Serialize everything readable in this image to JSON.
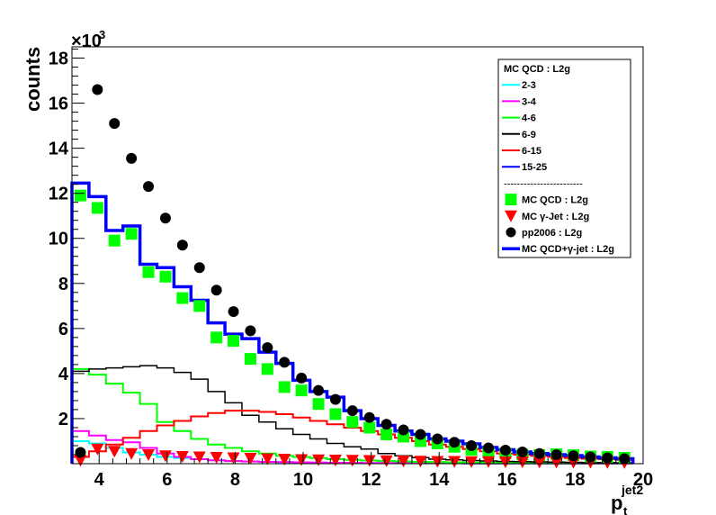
{
  "chart_data": {
    "type": "histogram",
    "ylabel": "counts",
    "xlabel_main": "p",
    "xlabel_sub": "t",
    "xlabel_sup": "jet2",
    "y_multiplier": "×10",
    "y_multiplier_exp": "3",
    "xlim": [
      3.2,
      20
    ],
    "ylim": [
      0,
      18.5
    ],
    "x_ticks": [
      4,
      6,
      8,
      10,
      12,
      14,
      16,
      18,
      20
    ],
    "y_ticks": [
      2,
      4,
      6,
      8,
      10,
      12,
      14,
      16,
      18
    ],
    "bin_edges": [
      3.2,
      3.7,
      4.2,
      4.7,
      5.2,
      5.7,
      6.2,
      6.7,
      7.2,
      7.7,
      8.2,
      8.7,
      9.2,
      9.7,
      10.2,
      10.7,
      11.2,
      11.7,
      12.2,
      12.7,
      13.2,
      13.7,
      14.2,
      14.7,
      15.2,
      15.7,
      16.2,
      16.7,
      17.2,
      17.7,
      18.2,
      18.7,
      19.2,
      19.7
    ],
    "legend": {
      "title": "MC QCD : L2g",
      "separator": "------------------------",
      "entries": [
        {
          "label": "2-3",
          "color": "#00ffff",
          "kind": "line"
        },
        {
          "label": "3-4",
          "color": "#ff00ff",
          "kind": "line"
        },
        {
          "label": "4-6",
          "color": "#00ff00",
          "kind": "line"
        },
        {
          "label": "6-9",
          "color": "#000000",
          "kind": "line"
        },
        {
          "label": "6-15",
          "color": "#ff0000",
          "kind": "line"
        },
        {
          "label": "15-25",
          "color": "#0000ff",
          "kind": "line"
        },
        {
          "label": "MC QCD : L2g",
          "color": "#00ff00",
          "kind": "square"
        },
        {
          "label": "MC γ-Jet : L2g",
          "color": "#ff0000",
          "kind": "triangle"
        },
        {
          "label": "pp2006 : L2g",
          "color": "#000000",
          "kind": "circle"
        },
        {
          "label": "MC QCD+γ-jet : L2g",
          "color": "#0000ff",
          "kind": "thickline"
        }
      ]
    },
    "series": [
      {
        "name": "2-3",
        "color": "#00ffff",
        "style": "hist",
        "width": 2,
        "values": [
          1.0,
          0.9,
          0.7,
          0.5,
          0.4,
          0.3,
          0.25,
          0.2,
          0.15,
          0.12,
          0.1,
          0.08,
          0.07,
          0.06,
          0.05,
          0.04,
          0.04,
          0.03,
          0.03,
          0.02,
          0.02,
          0.02,
          0.02,
          0.01,
          0.01,
          0.01,
          0.01,
          0.01,
          0.01,
          0.01,
          0.01,
          0.01,
          0.01
        ]
      },
      {
        "name": "3-4",
        "color": "#ff00ff",
        "style": "hist",
        "width": 2,
        "values": [
          1.45,
          1.25,
          1.05,
          0.95,
          0.7,
          0.45,
          0.3,
          0.2,
          0.15,
          0.12,
          0.1,
          0.08,
          0.07,
          0.06,
          0.05,
          0.04,
          0.04,
          0.03,
          0.03,
          0.02,
          0.02,
          0.02,
          0.02,
          0.01,
          0.01,
          0.01,
          0.01,
          0.01,
          0.01,
          0.01,
          0.01,
          0.01,
          0.01
        ]
      },
      {
        "name": "4-6",
        "color": "#00ff00",
        "style": "hist",
        "width": 2,
        "values": [
          4.2,
          3.95,
          3.55,
          3.15,
          2.65,
          1.85,
          1.45,
          1.1,
          0.85,
          0.7,
          0.55,
          0.45,
          0.35,
          0.3,
          0.25,
          0.2,
          0.17,
          0.14,
          0.12,
          0.1,
          0.08,
          0.07,
          0.06,
          0.05,
          0.05,
          0.04,
          0.04,
          0.03,
          0.03,
          0.03,
          0.03,
          0.02,
          0.02
        ]
      },
      {
        "name": "6-9",
        "color": "#000000",
        "style": "hist",
        "width": 1.5,
        "values": [
          4.1,
          4.2,
          4.25,
          4.3,
          4.35,
          4.25,
          4.05,
          3.75,
          3.2,
          2.7,
          2.15,
          1.85,
          1.55,
          1.3,
          1.1,
          0.9,
          0.75,
          0.65,
          0.45,
          0.35,
          0.27,
          0.2,
          0.17,
          0.14,
          0.12,
          0.1,
          0.09,
          0.08,
          0.07,
          0.06,
          0.05,
          0.05,
          0.04
        ]
      },
      {
        "name": "6-15",
        "color": "#ff0000",
        "style": "hist",
        "width": 2,
        "values": [
          0.3,
          0.55,
          0.85,
          1.15,
          1.45,
          1.7,
          1.9,
          2.1,
          2.25,
          2.35,
          2.35,
          2.3,
          2.2,
          2.05,
          1.9,
          1.75,
          1.6,
          1.45,
          1.3,
          1.15,
          1.0,
          0.85,
          0.75,
          0.65,
          0.55,
          0.45,
          0.4,
          0.35,
          0.3,
          0.25,
          0.22,
          0.2,
          0.17
        ]
      },
      {
        "name": "MC QCD+γ-jet : L2g",
        "color": "#0000ff",
        "style": "hist",
        "width": 3.5,
        "values": [
          12.45,
          11.85,
          10.35,
          10.55,
          8.85,
          8.7,
          7.85,
          7.25,
          6.25,
          5.75,
          5.55,
          4.95,
          4.45,
          3.7,
          3.2,
          2.95,
          2.35,
          2.0,
          1.7,
          1.45,
          1.3,
          1.1,
          1.0,
          0.88,
          0.72,
          0.62,
          0.52,
          0.45,
          0.4,
          0.36,
          0.3,
          0.26,
          0.22
        ]
      },
      {
        "name": "MC QCD : L2g",
        "color": "#00ff00",
        "style": "square",
        "values": [
          11.9,
          11.35,
          9.9,
          10.2,
          8.5,
          8.3,
          7.35,
          7.0,
          5.6,
          5.45,
          4.65,
          4.2,
          3.4,
          3.25,
          2.65,
          2.2,
          1.85,
          1.6,
          1.3,
          1.2,
          1.0,
          0.9,
          0.75,
          0.62,
          0.5,
          0.46,
          0.4,
          0.38,
          0.42,
          0.38,
          0.32,
          0.3,
          0.26
        ]
      },
      {
        "name": "MC γ-Jet : L2g",
        "color": "#ff0000",
        "style": "triangle",
        "values": [
          0.15,
          0.65,
          0.55,
          0.45,
          0.4,
          0.35,
          0.32,
          0.3,
          0.28,
          0.26,
          0.24,
          0.22,
          0.2,
          0.18,
          0.17,
          0.16,
          0.15,
          0.14,
          0.13,
          0.12,
          0.11,
          0.1,
          0.1,
          0.09,
          0.09,
          0.08,
          0.08,
          0.07,
          0.07,
          0.06,
          0.06,
          0.05,
          0.05
        ]
      },
      {
        "name": "pp2006 : L2g",
        "color": "#000000",
        "style": "circle",
        "values": [
          0.5,
          16.6,
          15.1,
          13.55,
          12.3,
          10.9,
          9.7,
          8.7,
          7.7,
          6.75,
          5.9,
          5.15,
          4.5,
          3.8,
          3.25,
          2.85,
          2.35,
          2.05,
          1.75,
          1.5,
          1.3,
          1.1,
          0.95,
          0.8,
          0.7,
          0.6,
          0.52,
          0.45,
          0.4,
          0.35,
          0.3,
          0.26,
          0.22
        ]
      }
    ]
  }
}
